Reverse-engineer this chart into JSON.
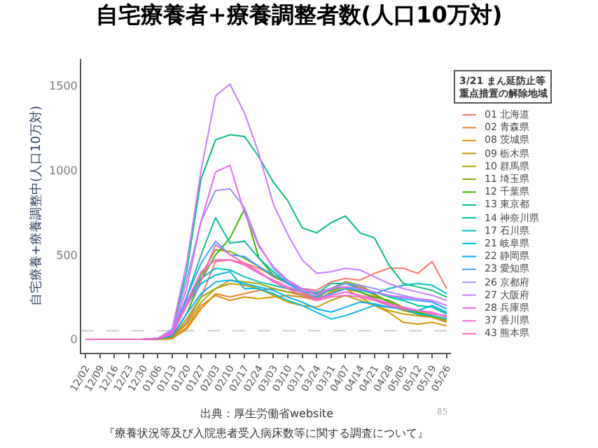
{
  "chart_data": {
    "type": "line",
    "title": "自宅療養者+療養調整者数(人口10万対)",
    "ylabel": "自宅療養+療養調整中(人口10万対)",
    "legend_title": "3/21 まん延防止等重点措置の解除地域",
    "legend": "right",
    "grid": false,
    "marker": "none",
    "line_style": "solid",
    "categories": [
      "12/02",
      "12/09",
      "12/16",
      "12/23",
      "12/30",
      "01/06",
      "01/13",
      "01/20",
      "01/27",
      "02/03",
      "02/10",
      "02/17",
      "02/24",
      "03/03",
      "03/10",
      "03/17",
      "03/24",
      "03/31",
      "04/07",
      "04/14",
      "04/21",
      "04/28",
      "05/05",
      "05/12",
      "05/19",
      "05/26"
    ],
    "ylim": [
      -80,
      1660
    ],
    "yticks": [
      0,
      500,
      1000,
      1500
    ],
    "ref_lines": [
      {
        "axis": "y",
        "value": 50,
        "color": "#cccccc",
        "line_style": "dashed"
      }
    ],
    "series": [
      {
        "name": "01 北海道",
        "color": "#f8766d",
        "values": [
          null,
          null,
          null,
          null,
          0,
          2,
          15,
          100,
          250,
          460,
          470,
          450,
          420,
          380,
          340,
          300,
          290,
          340,
          360,
          350,
          390,
          420,
          420,
          390,
          460,
          300
        ]
      },
      {
        "name": "02 青森県",
        "color": "#ea8331",
        "values": [
          null,
          null,
          null,
          null,
          0,
          0,
          5,
          60,
          180,
          270,
          250,
          270,
          290,
          300,
          280,
          270,
          240,
          300,
          330,
          310,
          260,
          220,
          180,
          150,
          130,
          100
        ]
      },
      {
        "name": "08 茨城県",
        "color": "#d89000",
        "values": [
          null,
          null,
          null,
          null,
          0,
          0,
          3,
          70,
          200,
          260,
          230,
          250,
          240,
          250,
          260,
          250,
          230,
          280,
          300,
          250,
          200,
          160,
          100,
          90,
          100,
          80
        ]
      },
      {
        "name": "09 栃木県",
        "color": "#c09b00",
        "values": [
          null,
          null,
          null,
          null,
          0,
          2,
          10,
          90,
          220,
          300,
          330,
          320,
          300,
          260,
          220,
          200,
          190,
          230,
          260,
          230,
          200,
          170,
          150,
          140,
          130,
          110
        ]
      },
      {
        "name": "10 群馬県",
        "color": "#a3a500",
        "values": [
          null,
          null,
          null,
          null,
          0,
          2,
          15,
          120,
          250,
          300,
          350,
          340,
          330,
          300,
          280,
          260,
          240,
          270,
          300,
          280,
          240,
          200,
          170,
          150,
          130,
          110
        ]
      },
      {
        "name": "11 埼玉県",
        "color": "#7cae00",
        "values": [
          null,
          null,
          null,
          null,
          0,
          3,
          30,
          200,
          380,
          530,
          520,
          480,
          430,
          370,
          330,
          300,
          270,
          300,
          340,
          320,
          270,
          220,
          180,
          150,
          140,
          120
        ]
      },
      {
        "name": "12 千葉県",
        "color": "#39b600",
        "values": [
          null,
          null,
          null,
          null,
          0,
          2,
          20,
          150,
          350,
          500,
          600,
          770,
          480,
          380,
          330,
          300,
          260,
          290,
          310,
          280,
          250,
          230,
          190,
          160,
          140,
          120
        ]
      },
      {
        "name": "13 東京都",
        "color": "#00bf7d",
        "values": [
          null,
          null,
          null,
          null,
          0,
          5,
          50,
          400,
          950,
          1180,
          1210,
          1200,
          1080,
          930,
          820,
          660,
          630,
          690,
          730,
          630,
          600,
          440,
          330,
          310,
          290,
          250
        ]
      },
      {
        "name": "14 神奈川県",
        "color": "#00c1a3",
        "values": [
          null,
          null,
          null,
          null,
          0,
          3,
          30,
          250,
          500,
          720,
          570,
          580,
          480,
          400,
          330,
          280,
          270,
          330,
          330,
          300,
          280,
          250,
          230,
          200,
          190,
          150
        ]
      },
      {
        "name": "17 石川県",
        "color": "#00bfc4",
        "values": [
          null,
          null,
          null,
          null,
          0,
          5,
          40,
          230,
          360,
          420,
          410,
          370,
          340,
          320,
          300,
          280,
          250,
          300,
          310,
          290,
          270,
          300,
          320,
          330,
          320,
          270
        ]
      },
      {
        "name": "21 岐阜県",
        "color": "#00bae0",
        "values": [
          null,
          null,
          null,
          null,
          0,
          3,
          30,
          200,
          330,
          380,
          400,
          300,
          300,
          270,
          230,
          200,
          160,
          120,
          140,
          170,
          200,
          190,
          180,
          150,
          140,
          120
        ]
      },
      {
        "name": "22 静岡県",
        "color": "#00b0f6",
        "values": [
          null,
          null,
          null,
          null,
          0,
          2,
          20,
          150,
          270,
          340,
          350,
          330,
          310,
          290,
          250,
          220,
          180,
          160,
          190,
          220,
          210,
          190,
          180,
          170,
          200,
          160
        ]
      },
      {
        "name": "23 愛知県",
        "color": "#35a2ff",
        "values": [
          null,
          null,
          null,
          null,
          0,
          5,
          40,
          250,
          450,
          580,
          500,
          490,
          430,
          380,
          330,
          280,
          240,
          270,
          300,
          290,
          280,
          260,
          240,
          230,
          220,
          180
        ]
      },
      {
        "name": "26 京都府",
        "color": "#9590ff",
        "values": [
          null,
          null,
          null,
          null,
          0,
          5,
          50,
          350,
          700,
          880,
          890,
          780,
          560,
          420,
          340,
          290,
          280,
          300,
          330,
          320,
          300,
          280,
          260,
          240,
          230,
          200
        ]
      },
      {
        "name": "27 大阪府",
        "color": "#c77cff",
        "values": [
          null,
          null,
          null,
          null,
          0,
          5,
          60,
          450,
          1000,
          1440,
          1510,
          1340,
          1100,
          800,
          620,
          470,
          390,
          400,
          420,
          410,
          370,
          330,
          300,
          280,
          260,
          230
        ]
      },
      {
        "name": "28 兵庫県",
        "color": "#e76bf3",
        "values": [
          null,
          null,
          null,
          null,
          0,
          5,
          40,
          300,
          700,
          990,
          1030,
          750,
          550,
          430,
          350,
          300,
          260,
          300,
          310,
          300,
          280,
          260,
          250,
          240,
          230,
          200
        ]
      },
      {
        "name": "37 香川県",
        "color": "#fa62db",
        "values": [
          null,
          null,
          null,
          null,
          0,
          3,
          30,
          220,
          400,
          470,
          470,
          440,
          390,
          350,
          310,
          280,
          240,
          260,
          280,
          260,
          240,
          210,
          190,
          170,
          160,
          130
        ]
      },
      {
        "name": "43 熊本県",
        "color": "#ff62bc",
        "values": [
          0,
          0,
          0,
          0,
          0,
          3,
          30,
          200,
          350,
          560,
          500,
          450,
          400,
          340,
          300,
          260,
          230,
          250,
          260,
          250,
          230,
          200,
          180,
          170,
          150,
          140
        ]
      }
    ],
    "annotations": [
      "出典：厚生労働省website",
      "『療養状況等及び入院患者受入病床数等に関する調査について』",
      "85"
    ]
  }
}
